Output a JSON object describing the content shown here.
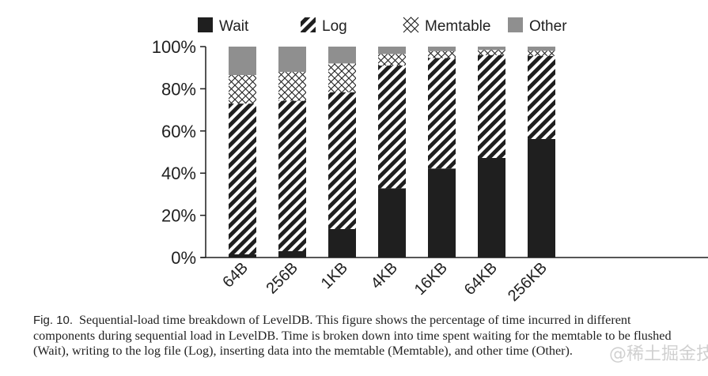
{
  "chart_data": {
    "type": "bar",
    "stacked": true,
    "title": "",
    "xlabel": "",
    "ylabel": "",
    "ylim": [
      0,
      100
    ],
    "yticks": [
      "0%",
      "20%",
      "40%",
      "60%",
      "80%",
      "100%"
    ],
    "ytick_values": [
      0,
      20,
      40,
      60,
      80,
      100
    ],
    "categories": [
      "64B",
      "256B",
      "1KB",
      "4KB",
      "16KB",
      "64KB",
      "256KB"
    ],
    "legend_position": "top",
    "series": [
      {
        "name": "Wait",
        "pattern": "solid",
        "color": "#1f1f1f",
        "values": [
          1.5,
          3,
          13.5,
          32.8,
          42.2,
          47.2,
          56.2
        ]
      },
      {
        "name": "Log",
        "pattern": "diagonal-stripes",
        "color": "#1f1f1f",
        "values": [
          71.5,
          71.3,
          64.9,
          58.2,
          52.4,
          48.8,
          39.4
        ]
      },
      {
        "name": "Memtable",
        "pattern": "crosshatch",
        "color": "#1f1f1f",
        "values": [
          13.5,
          13.7,
          13.6,
          5.5,
          3.2,
          2.4,
          2.4
        ]
      },
      {
        "name": "Other",
        "pattern": "solid",
        "color": "#8f8f8f",
        "values": [
          13.5,
          12,
          8,
          3.5,
          2.2,
          1.6,
          2
        ]
      }
    ]
  },
  "caption": {
    "label": "Fig. 10.",
    "text": "Sequential-load time breakdown of LevelDB. This figure shows the percentage of time incurred in different components during sequential load in LevelDB. Time is broken down into time spent waiting for the memtable to be flushed (Wait), writing to the log file (Log), inserting data into the memtable (Memtable), and other time (Other)."
  },
  "watermark": "@稀土掘金技术社区"
}
